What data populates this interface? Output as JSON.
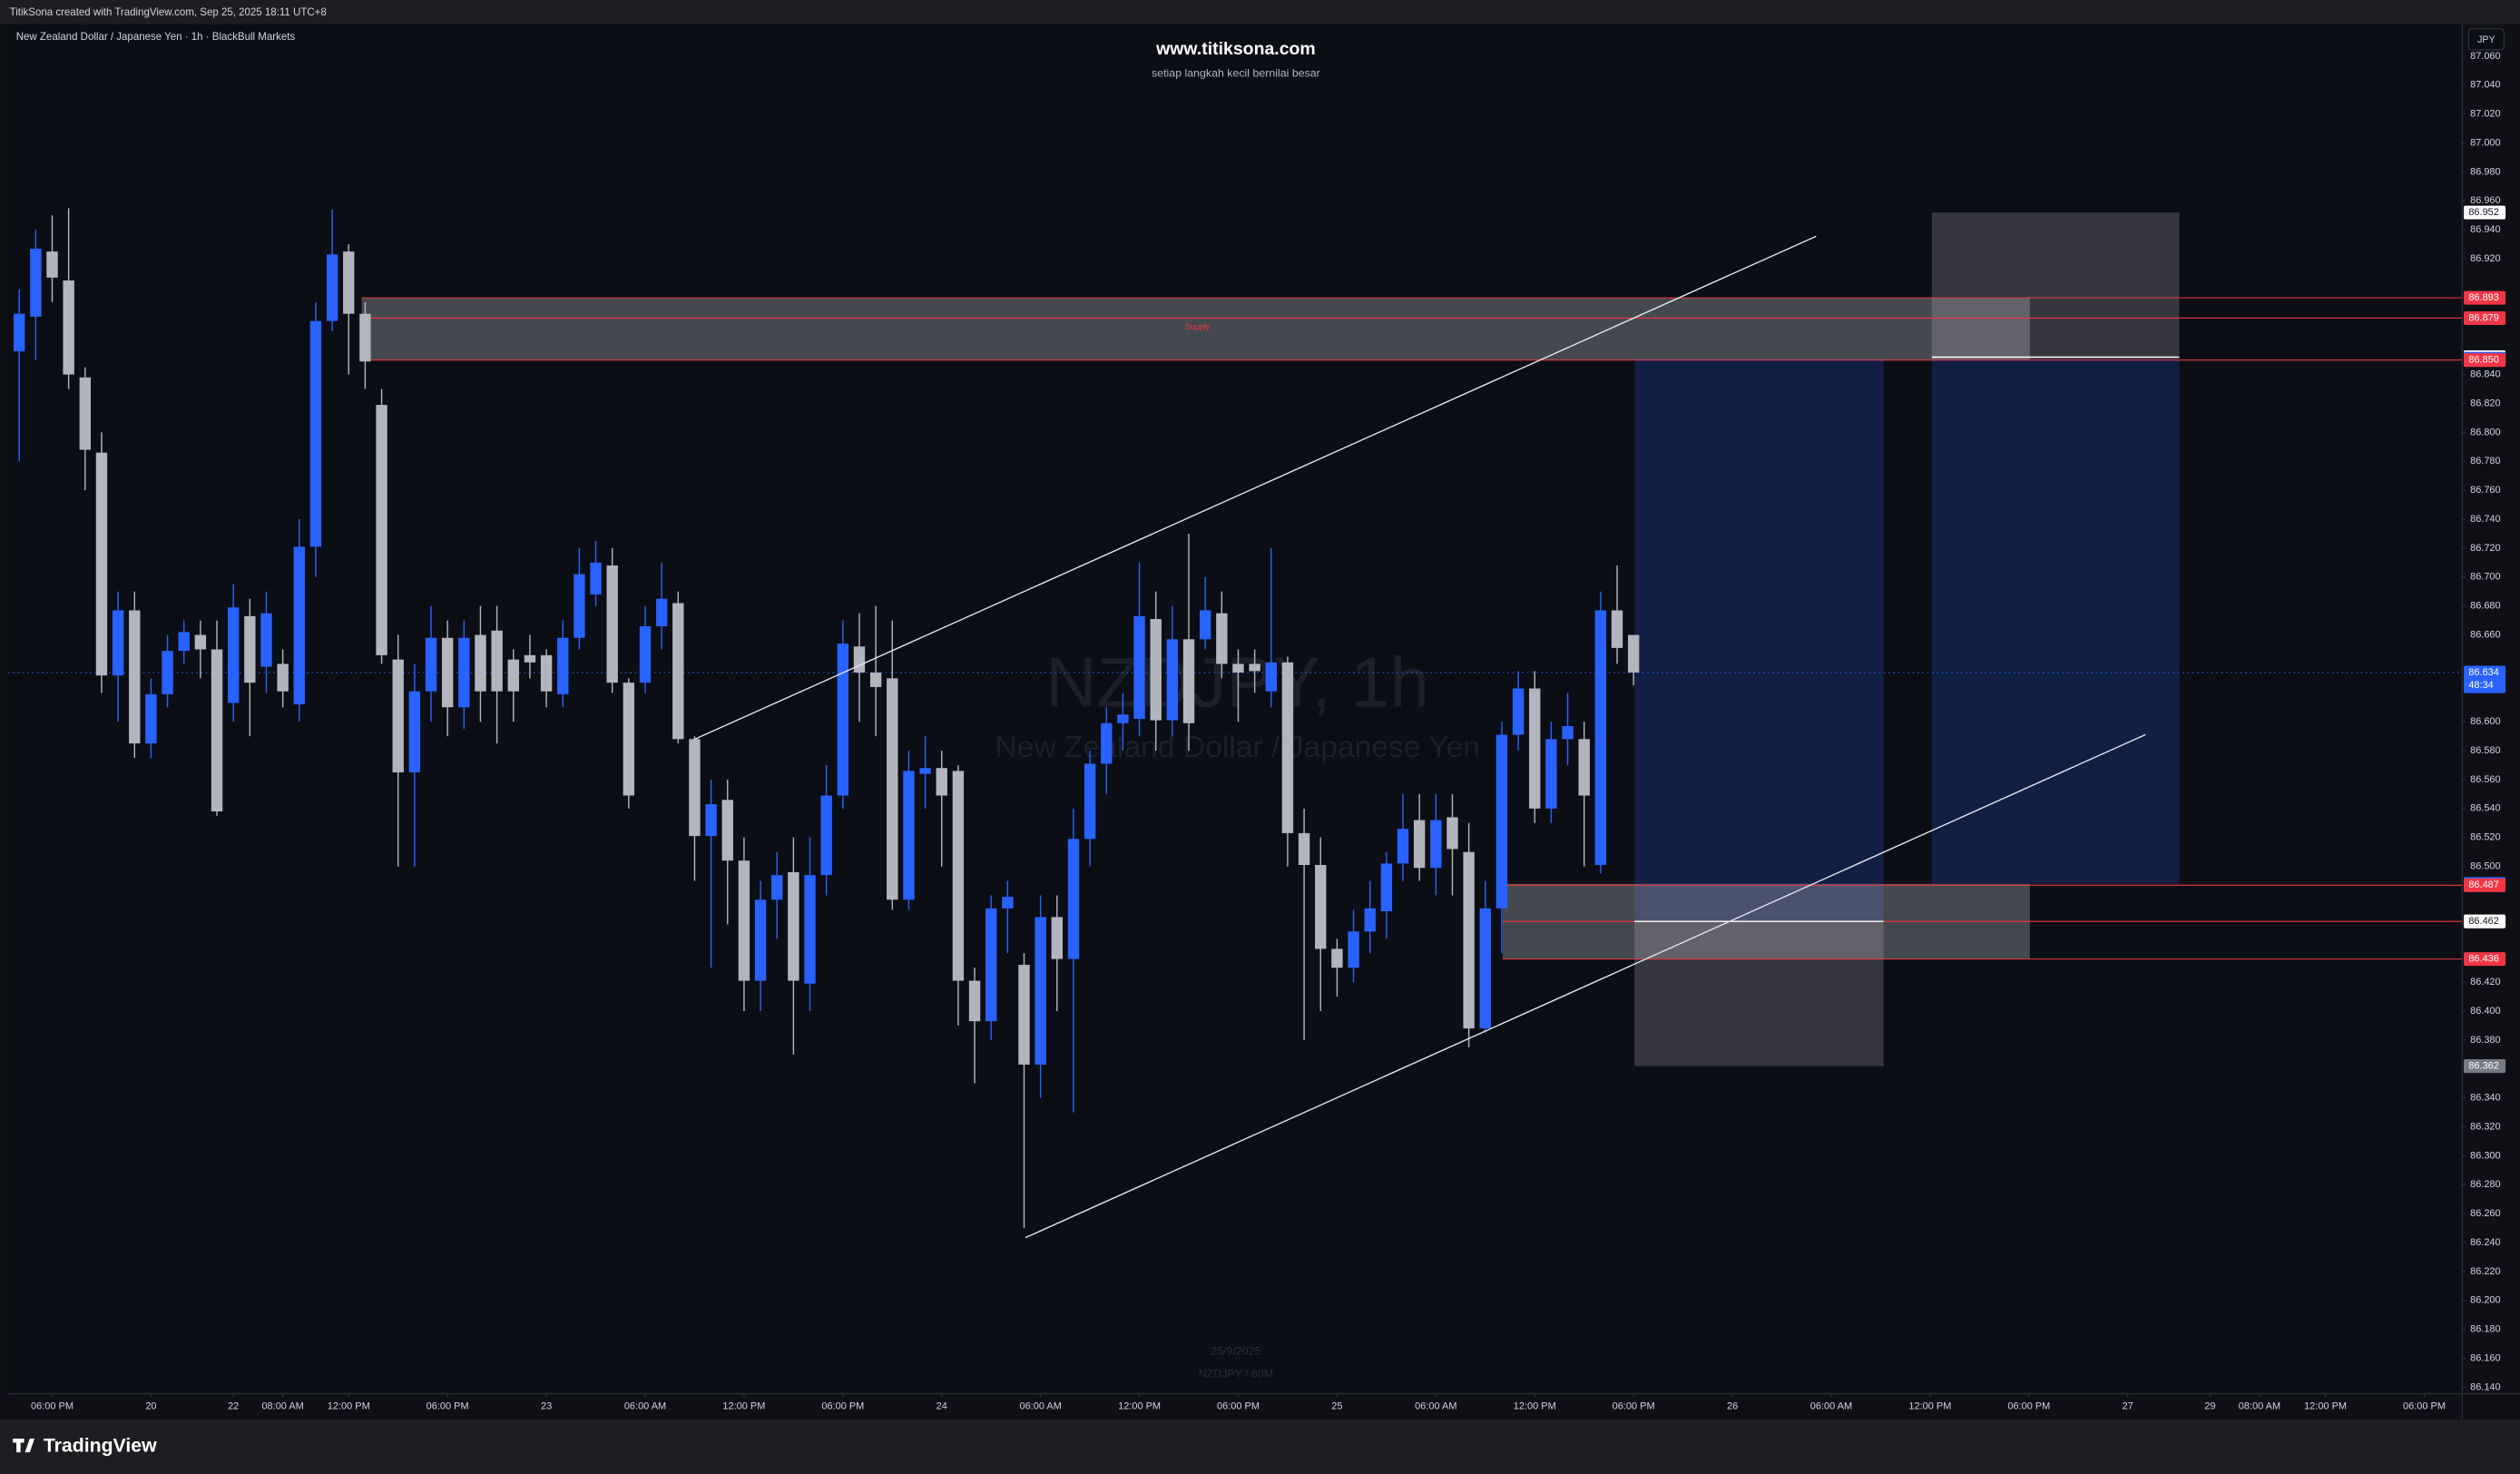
{
  "header": {
    "credit": "TitikSona created with TradingView.com, Sep 25, 2025 18:11 UTC+8"
  },
  "footer": {
    "logo": "TradingView"
  },
  "watermark": {
    "site": "www.titiksona.com",
    "tagline": "setiap langkah kecil bernilai besar",
    "symbol": "NZDJPY, 1h",
    "name": "New Zealand Dollar / Japanese Yen",
    "date": "25/9/2025",
    "interval": "NZDJPY / 60M"
  },
  "chart_data": {
    "type": "candlestick",
    "title": "New Zealand Dollar / Japanese Yen · 1h · BlackBull Markets",
    "currency": "JPY",
    "zone_label": "Supply",
    "countdown": "48:34",
    "up_color": "#2962ff",
    "down_color": "#b2b5be",
    "grid": false,
    "open": [
      86.856,
      86.88,
      86.925,
      86.905,
      86.838,
      86.786,
      86.632,
      86.677,
      86.585,
      86.619,
      86.649,
      86.66,
      86.65,
      86.613,
      86.673,
      86.638,
      86.64,
      86.612,
      86.721,
      86.877,
      86.925,
      86.882,
      86.819,
      86.643,
      86.565,
      86.621,
      86.658,
      86.61,
      86.66,
      86.663,
      86.643,
      86.646,
      86.646,
      86.619,
      86.658,
      86.688,
      86.708,
      86.627,
      86.627,
      86.666,
      86.682,
      86.588,
      86.521,
      86.546,
      86.504,
      86.421,
      86.477,
      86.496,
      86.419,
      86.494,
      86.549,
      86.652,
      86.634,
      86.63,
      86.477,
      86.564,
      86.568,
      86.566,
      86.421,
      86.393,
      86.471,
      86.432,
      86.363,
      86.465,
      86.436,
      86.519,
      86.571,
      86.599,
      86.602,
      86.671,
      86.601,
      86.657,
      86.657,
      86.675,
      86.64,
      86.64,
      86.621,
      86.641,
      86.523,
      86.501,
      86.443,
      86.43,
      86.455,
      86.469,
      86.502,
      86.532,
      86.499,
      86.534,
      86.51,
      86.388,
      86.471,
      86.591,
      86.623,
      86.54,
      86.588,
      86.588,
      86.501,
      86.677,
      86.66
    ],
    "high": [
      86.899,
      86.94,
      86.95,
      86.955,
      86.845,
      86.8,
      86.69,
      86.69,
      86.63,
      86.66,
      86.67,
      86.67,
      86.67,
      86.695,
      86.685,
      86.69,
      86.65,
      86.74,
      86.89,
      86.954,
      86.93,
      86.89,
      86.83,
      86.66,
      86.64,
      86.68,
      86.67,
      86.67,
      86.68,
      86.68,
      86.65,
      86.66,
      86.65,
      86.67,
      86.72,
      86.725,
      86.72,
      86.63,
      86.68,
      86.71,
      86.69,
      86.59,
      86.56,
      86.56,
      86.52,
      86.49,
      86.51,
      86.52,
      86.52,
      86.57,
      86.67,
      86.675,
      86.68,
      86.67,
      86.58,
      86.59,
      86.58,
      86.57,
      86.43,
      86.48,
      86.49,
      86.44,
      86.48,
      86.48,
      86.54,
      86.58,
      86.61,
      86.62,
      86.71,
      86.69,
      86.68,
      86.73,
      86.7,
      86.69,
      86.65,
      86.65,
      86.72,
      86.645,
      86.54,
      86.52,
      86.45,
      86.47,
      86.49,
      86.51,
      86.55,
      86.55,
      86.55,
      86.55,
      86.53,
      86.49,
      86.6,
      86.635,
      86.635,
      86.6,
      86.62,
      86.6,
      86.69,
      86.708,
      86.66
    ],
    "low": [
      86.78,
      86.85,
      86.89,
      86.83,
      86.76,
      86.62,
      86.6,
      86.575,
      86.575,
      86.61,
      86.64,
      86.63,
      86.535,
      86.6,
      86.59,
      86.62,
      86.61,
      86.6,
      86.7,
      86.87,
      86.84,
      86.83,
      86.64,
      86.5,
      86.5,
      86.6,
      86.59,
      86.595,
      86.6,
      86.585,
      86.6,
      86.63,
      86.61,
      86.61,
      86.65,
      86.68,
      86.62,
      86.54,
      86.62,
      86.65,
      86.585,
      86.49,
      86.43,
      86.46,
      86.4,
      86.4,
      86.45,
      86.37,
      86.4,
      86.48,
      86.54,
      86.6,
      86.59,
      86.47,
      86.47,
      86.54,
      86.5,
      86.39,
      86.35,
      86.38,
      86.44,
      86.25,
      86.34,
      86.4,
      86.33,
      86.5,
      86.55,
      86.58,
      86.59,
      86.58,
      86.59,
      86.58,
      86.65,
      86.63,
      86.6,
      86.62,
      86.61,
      86.5,
      86.38,
      86.4,
      86.41,
      86.42,
      86.44,
      86.45,
      86.49,
      86.49,
      86.48,
      86.48,
      86.375,
      86.385,
      86.44,
      86.58,
      86.53,
      86.53,
      86.57,
      86.5,
      86.495,
      86.64,
      86.625
    ],
    "close": [
      86.882,
      86.927,
      86.907,
      86.84,
      86.788,
      86.632,
      86.677,
      86.585,
      86.619,
      86.649,
      86.662,
      86.65,
      86.538,
      86.679,
      86.627,
      86.675,
      86.621,
      86.721,
      86.877,
      86.923,
      86.882,
      86.849,
      86.646,
      86.565,
      86.621,
      86.658,
      86.61,
      86.658,
      86.621,
      86.621,
      86.621,
      86.641,
      86.621,
      86.658,
      86.702,
      86.71,
      86.627,
      86.549,
      86.666,
      86.685,
      86.588,
      86.521,
      86.543,
      86.504,
      86.421,
      86.477,
      86.494,
      86.421,
      86.494,
      86.549,
      86.654,
      86.634,
      86.624,
      86.477,
      86.566,
      86.568,
      86.549,
      86.421,
      86.393,
      86.471,
      86.479,
      86.363,
      86.465,
      86.436,
      86.519,
      86.571,
      86.599,
      86.605,
      86.673,
      86.601,
      86.657,
      86.599,
      86.677,
      86.64,
      86.634,
      86.635,
      86.641,
      86.523,
      86.501,
      86.443,
      86.43,
      86.455,
      86.471,
      86.502,
      86.526,
      86.499,
      86.532,
      86.512,
      86.388,
      86.471,
      86.591,
      86.623,
      86.54,
      86.588,
      86.597,
      86.549,
      86.677,
      86.651,
      86.634
    ],
    "xlim": [
      -0.68,
      148.3
    ],
    "xticks": [
      {
        "value": 2,
        "label": "06:00 PM"
      },
      {
        "value": 8,
        "label": "20"
      },
      {
        "value": 13,
        "label": "22"
      },
      {
        "value": 16,
        "label": "08:00 AM"
      },
      {
        "value": 20,
        "label": "12:00 PM"
      },
      {
        "value": 26,
        "label": "06:00 PM"
      },
      {
        "value": 32,
        "label": "23"
      },
      {
        "value": 38,
        "label": "06:00 AM"
      },
      {
        "value": 44,
        "label": "12:00 PM"
      },
      {
        "value": 50,
        "label": "06:00 PM"
      },
      {
        "value": 56,
        "label": "24"
      },
      {
        "value": 62,
        "label": "06:00 AM"
      },
      {
        "value": 68,
        "label": "12:00 PM"
      },
      {
        "value": 74,
        "label": "06:00 PM"
      },
      {
        "value": 80,
        "label": "25"
      },
      {
        "value": 86,
        "label": "06:00 AM"
      },
      {
        "value": 92,
        "label": "12:00 PM"
      },
      {
        "value": 98,
        "label": "06:00 PM"
      },
      {
        "value": 104,
        "label": "26"
      },
      {
        "value": 110,
        "label": "06:00 AM"
      },
      {
        "value": 116,
        "label": "12:00 PM"
      },
      {
        "value": 122,
        "label": "06:00 PM"
      },
      {
        "value": 128,
        "label": "27"
      },
      {
        "value": 133,
        "label": "29"
      },
      {
        "value": 136,
        "label": "08:00 AM"
      },
      {
        "value": 140,
        "label": "12:00 PM"
      },
      {
        "value": 146,
        "label": "06:00 PM"
      }
    ],
    "ylim": [
      86.1356,
      87.0822
    ],
    "yticks": [
      {
        "value": 86.14,
        "label": "86.140"
      },
      {
        "value": 86.16,
        "label": "86.160"
      },
      {
        "value": 86.18,
        "label": "86.180"
      },
      {
        "value": 86.2,
        "label": "86.200"
      },
      {
        "value": 86.22,
        "label": "86.220"
      },
      {
        "value": 86.24,
        "label": "86.240"
      },
      {
        "value": 86.26,
        "label": "86.260"
      },
      {
        "value": 86.28,
        "label": "86.280"
      },
      {
        "value": 86.3,
        "label": "86.300"
      },
      {
        "value": 86.32,
        "label": "86.320"
      },
      {
        "value": 86.34,
        "label": "86.340"
      },
      {
        "value": 86.38,
        "label": "86.380"
      },
      {
        "value": 86.4,
        "label": "86.400"
      },
      {
        "value": 86.42,
        "label": "86.420"
      },
      {
        "value": 86.5,
        "label": "86.500"
      },
      {
        "value": 86.52,
        "label": "86.520"
      },
      {
        "value": 86.54,
        "label": "86.540"
      },
      {
        "value": 86.56,
        "label": "86.560"
      },
      {
        "value": 86.58,
        "label": "86.580"
      },
      {
        "value": 86.6,
        "label": "86.600"
      },
      {
        "value": 86.66,
        "label": "86.660"
      },
      {
        "value": 86.68,
        "label": "86.680"
      },
      {
        "value": 86.7,
        "label": "86.700"
      },
      {
        "value": 86.72,
        "label": "86.720"
      },
      {
        "value": 86.74,
        "label": "86.740"
      },
      {
        "value": 86.76,
        "label": "86.760"
      },
      {
        "value": 86.78,
        "label": "86.780"
      },
      {
        "value": 86.8,
        "label": "86.800"
      },
      {
        "value": 86.82,
        "label": "86.820"
      },
      {
        "value": 86.84,
        "label": "86.840"
      },
      {
        "value": 86.92,
        "label": "86.920"
      },
      {
        "value": 86.94,
        "label": "86.940"
      },
      {
        "value": 86.96,
        "label": "86.960"
      },
      {
        "value": 86.98,
        "label": "86.980"
      },
      {
        "value": 87.0,
        "label": "87.000"
      },
      {
        "value": 87.02,
        "label": "87.020"
      },
      {
        "value": 87.04,
        "label": "87.040"
      },
      {
        "value": 87.06,
        "label": "87.060"
      }
    ],
    "price_markers": [
      {
        "value": 86.952,
        "label": "86.952",
        "color": "#ffffff",
        "text_color": "#131722"
      },
      {
        "value": 86.893,
        "label": "86.893",
        "color": "#f23645",
        "text_color": "#ffffff"
      },
      {
        "value": 86.879,
        "label": "86.879",
        "color": "#f23645",
        "text_color": "#ffffff"
      },
      {
        "value": 86.852,
        "label": "86.852",
        "color": "#ffffff",
        "text_color": "#131722"
      },
      {
        "value": 86.851,
        "label": "86.851",
        "color": "#2962ff",
        "text_color": "#ffffff"
      },
      {
        "value": 86.85,
        "label": "86.850",
        "color": "#f23645",
        "text_color": "#ffffff"
      },
      {
        "value": 86.634,
        "label": "86.634",
        "color": "#2962ff",
        "text_color": "#ffffff"
      },
      {
        "value": 86.488,
        "label": "86.488",
        "color": "#2962ff",
        "text_color": "#ffffff"
      },
      {
        "value": 86.487,
        "label": "86.487",
        "color": "#f23645",
        "text_color": "#ffffff"
      },
      {
        "value": 86.462,
        "label": "86.462",
        "color": "#f23645",
        "text_color": "#ffffff"
      },
      {
        "value": 86.462,
        "label": "86.462",
        "color": "#ffffff",
        "text_color": "#131722"
      },
      {
        "value": 86.436,
        "label": "86.436",
        "color": "#f23645",
        "text_color": "#ffffff"
      },
      {
        "value": 86.362,
        "label": "86.362",
        "color": "#787b86",
        "text_color": "#ffffff"
      }
    ]
  }
}
